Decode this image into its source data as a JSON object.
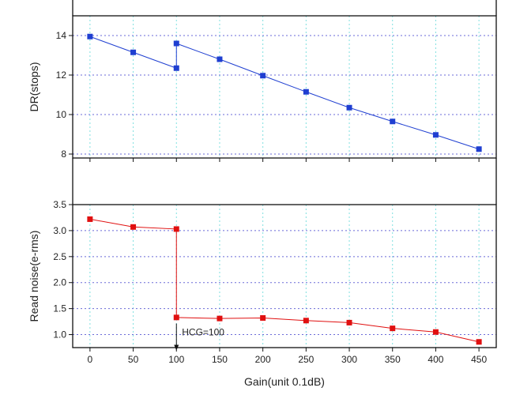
{
  "chart_data": [
    {
      "type": "line",
      "ylabel": "DR(stops)",
      "xlim": [
        -20,
        470
      ],
      "ylim": [
        7.8,
        15.0
      ],
      "yticks": [
        8,
        10,
        12,
        14
      ],
      "grid": true,
      "series": [
        {
          "color": "#1f3fd1",
          "marker": "square",
          "x": [
            0,
            50,
            100,
            100,
            150,
            200,
            250,
            300,
            350,
            400,
            450
          ],
          "y": [
            13.95,
            13.15,
            12.35,
            13.6,
            12.8,
            11.97,
            11.15,
            10.35,
            9.65,
            8.97,
            8.25
          ]
        }
      ]
    },
    {
      "type": "line",
      "ylabel": "Read noise(e-rms)",
      "xlabel": "Gain(unit 0.1dB)",
      "xlim": [
        -20,
        470
      ],
      "ylim": [
        0.75,
        3.5
      ],
      "yticks": [
        1.0,
        1.5,
        2.0,
        2.5,
        3.0,
        3.5
      ],
      "xticks": [
        0,
        50,
        100,
        150,
        200,
        250,
        300,
        350,
        400,
        450
      ],
      "grid": true,
      "series": [
        {
          "color": "#e01010",
          "marker": "square",
          "x": [
            0,
            50,
            100,
            100,
            150,
            200,
            250,
            300,
            350,
            400,
            450
          ],
          "y": [
            3.22,
            3.07,
            3.03,
            1.33,
            1.31,
            1.32,
            1.27,
            1.23,
            1.12,
            1.05,
            0.86
          ]
        }
      ],
      "annotations": [
        {
          "text": "HCG=100",
          "x": 100,
          "y": 1.0
        }
      ]
    }
  ]
}
